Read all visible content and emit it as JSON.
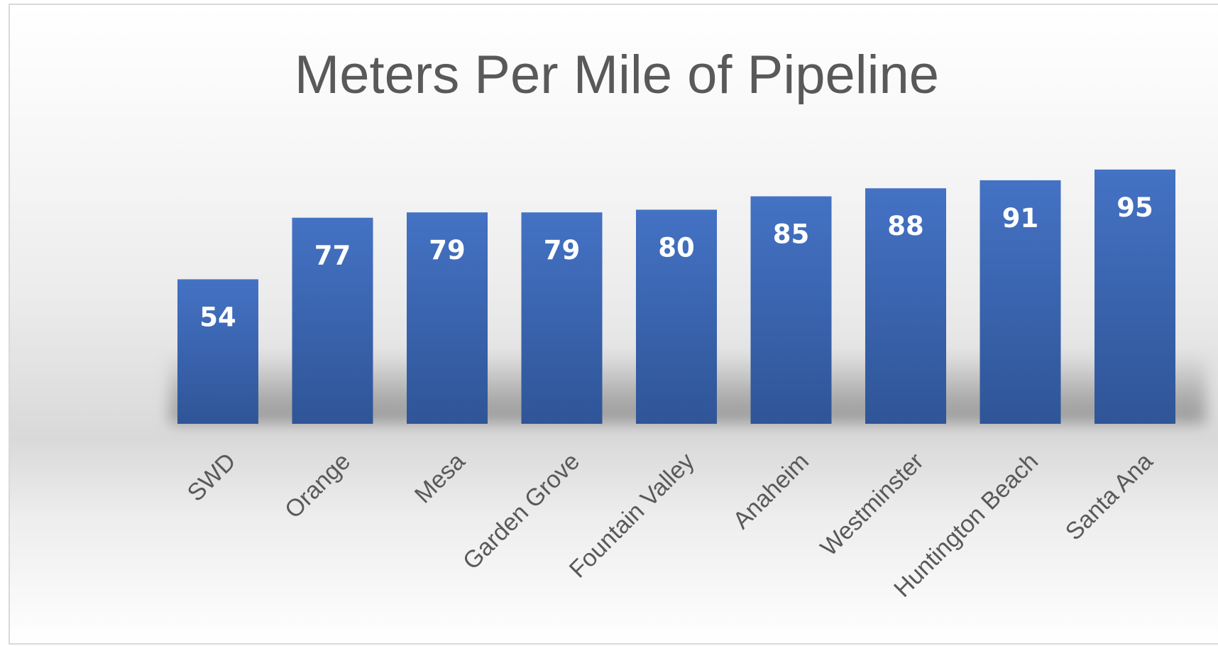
{
  "chart_data": {
    "type": "bar",
    "title": "Meters Per Mile of Pipeline",
    "categories": [
      "SWD",
      "Orange",
      "Mesa",
      "Garden Grove",
      "Fountain Valley",
      "Anaheim",
      "Westminster",
      "Huntington Beach",
      "Santa Ana"
    ],
    "values": [
      54,
      77,
      79,
      79,
      80,
      85,
      88,
      91,
      95
    ],
    "xlabel": "",
    "ylabel": "",
    "ylim": [
      0,
      100
    ],
    "grid": false,
    "legend": "none",
    "data_labels": "inside-top",
    "bar_color": "#4472c4",
    "bar_color_dark": "#2f5597"
  }
}
